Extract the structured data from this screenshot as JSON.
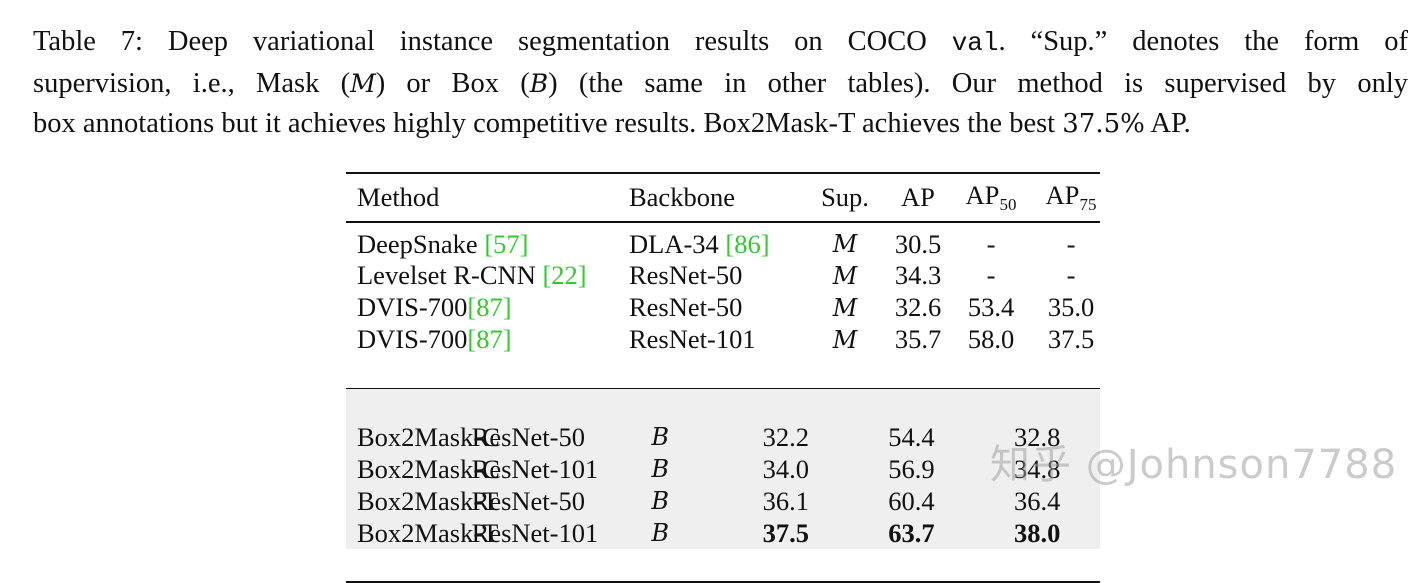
{
  "caption": {
    "line1_a": "Table 7: Deep variational instance segmentation results on COCO ",
    "line1_code": "val",
    "line1_b": ". “Sup.” denotes the form of",
    "line2_a": "supervision, i.e., Mask (",
    "line2_m": "M",
    "line2_b": ") or Box (",
    "line2_bx": "B",
    "line2_c": ") (the same in other tables). Our method is supervised by only",
    "line3_a": "box annotations but it achieves highly competitive results. Box2Mask-T achieves the best ",
    "line3_num": "37.5%",
    "line3_b": " AP."
  },
  "table": {
    "headers": {
      "method": "Method",
      "backbone": "Backbone",
      "sup": "Sup.",
      "ap": "AP",
      "ap50_base": "AP",
      "ap50_sub": "50",
      "ap75_base": "AP",
      "ap75_sub": "75"
    },
    "group1": [
      {
        "method": "DeepSnake ",
        "cite": "[57]",
        "backbone": "DLA-34 ",
        "bcite": "[86]",
        "sup": "M",
        "ap": "30.5",
        "ap50": "-",
        "ap75": "-"
      },
      {
        "method": "Levelset R-CNN ",
        "cite": "[22]",
        "backbone": "ResNet-50",
        "bcite": "",
        "sup": "M",
        "ap": "34.3",
        "ap50": "-",
        "ap75": "-"
      },
      {
        "method": "DVIS-700",
        "cite": "[87]",
        "backbone": "ResNet-50",
        "bcite": "",
        "sup": "M",
        "ap": "32.6",
        "ap50": "53.4",
        "ap75": "35.0"
      },
      {
        "method": "DVIS-700",
        "cite": "[87]",
        "backbone": "ResNet-101",
        "bcite": "",
        "sup": "M",
        "ap": "35.7",
        "ap50": "58.0",
        "ap75": "37.5"
      }
    ],
    "group2": [
      {
        "method": "Box2Mask-C",
        "backbone": "ResNet-50",
        "sup": "B",
        "ap": "32.2",
        "ap50": "54.4",
        "ap75": "32.8"
      },
      {
        "method": "Box2Mask-C",
        "backbone": "ResNet-101",
        "sup": "B",
        "ap": "34.0",
        "ap50": "56.9",
        "ap75": "34.8"
      },
      {
        "method": "Box2Mask-T",
        "backbone": "ResNet-50",
        "sup": "B",
        "ap": "36.1",
        "ap50": "60.4",
        "ap75": "36.4"
      },
      {
        "method": "Box2Mask-T",
        "backbone": "ResNet-101",
        "sup": "B",
        "ap": "37.5",
        "ap50": "63.7",
        "ap75": "38.0"
      }
    ]
  },
  "watermark": "知乎 @Johnson7788"
}
